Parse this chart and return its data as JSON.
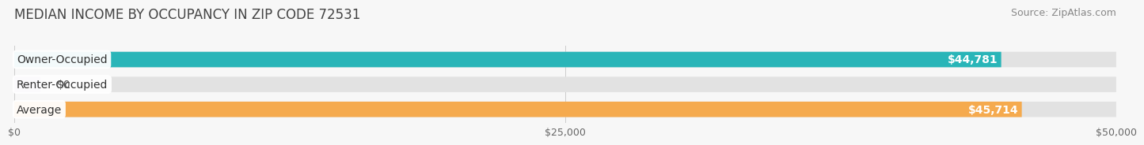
{
  "title": "MEDIAN INCOME BY OCCUPANCY IN ZIP CODE 72531",
  "source": "Source: ZipAtlas.com",
  "categories": [
    "Owner-Occupied",
    "Renter-Occupied",
    "Average"
  ],
  "values": [
    44781,
    0,
    45714
  ],
  "bar_colors": [
    "#29b5b8",
    "#c4a8d4",
    "#f5aa4e"
  ],
  "bar_bg_color": "#e2e2e2",
  "label_values": [
    "$44,781",
    "$0",
    "$45,714"
  ],
  "xlim": [
    0,
    50000
  ],
  "xtick_labels": [
    "$0",
    "$25,000",
    "$50,000"
  ],
  "xtick_vals": [
    0,
    25000,
    50000
  ],
  "title_fontsize": 12,
  "source_fontsize": 9,
  "cat_fontsize": 10,
  "val_fontsize": 10,
  "bar_height": 0.62,
  "background_color": "#f7f7f7",
  "renter_stub": 1200
}
